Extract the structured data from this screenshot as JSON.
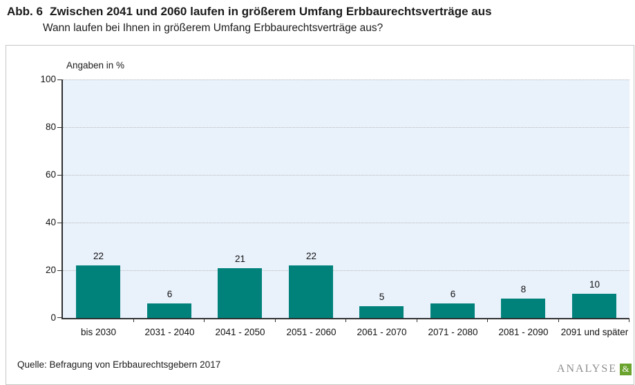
{
  "header": {
    "figure_label": "Abb. 6",
    "title": "Zwischen 2041 und 2060 laufen in größerem Umfang Erbbaurechtsverträge aus",
    "subtitle": "Wann laufen bei Ihnen in größerem Umfang Erbbaurechtsverträge aus?"
  },
  "chart_data": {
    "type": "bar",
    "axis_label": "Angaben in %",
    "categories": [
      "bis 2030",
      "2031 - 2040",
      "2041 - 2050",
      "2051 - 2060",
      "2061 - 2070",
      "2071 - 2080",
      "2081 - 2090",
      "2091 und später"
    ],
    "values": [
      22,
      6,
      21,
      22,
      5,
      6,
      8,
      10
    ],
    "ylim": [
      0,
      100
    ],
    "yticks": [
      0,
      20,
      40,
      60,
      80,
      100
    ],
    "grid": "horizontal-dotted",
    "legend": "none",
    "bar_color": "#00827b",
    "plot_bg": "#e9f1fb"
  },
  "footer": {
    "source": "Quelle: Befragung von Erbbaurechtsgebern 2017",
    "logo": {
      "text": "ANALYSE",
      "symbol": "&",
      "symbol_bg": "#6aa32e"
    }
  }
}
